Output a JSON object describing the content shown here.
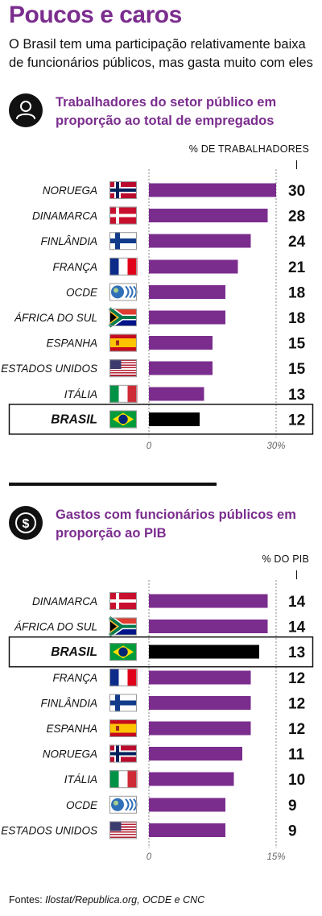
{
  "header": {
    "title": "Poucos e caros",
    "subtitle": "O Brasil tem uma participação relativamente baixa de funcionários públicos, mas gasta muito com eles"
  },
  "colors": {
    "bar": "#7b2d8e",
    "highlight_bar": "#000000",
    "title": "#7b2d8e"
  },
  "icons": {
    "section1": "person-icon",
    "section2": "dollar-coin-icon"
  },
  "source": {
    "prefix": "Fontes: ",
    "text": "Ilostat/Republica.org, OCDE e CNC"
  },
  "chart_data": [
    {
      "type": "bar",
      "orientation": "horizontal",
      "title": "Trabalhadores do setor público em proporção ao total de empregados",
      "unit_label": "% DE TRABALHADORES",
      "categories": [
        "NORUEGA",
        "DINAMARCA",
        "FINLÂNDIA",
        "FRANÇA",
        "OCDE",
        "ÁFRICA DO SUL",
        "ESPANHA",
        "ESTADOS UNIDOS",
        "ITÁLIA",
        "BRASIL"
      ],
      "values": [
        30,
        28,
        24,
        21,
        18,
        18,
        15,
        15,
        13,
        12
      ],
      "flags": [
        "norway",
        "denmark",
        "finland",
        "france",
        "oecd",
        "south-africa",
        "spain",
        "usa",
        "italy",
        "brazil"
      ],
      "highlight": "BRASIL",
      "xlim": [
        0,
        30
      ],
      "ticks": [
        "0",
        "30%"
      ],
      "grid": true
    },
    {
      "type": "bar",
      "orientation": "horizontal",
      "title": "Gastos com funcionários públicos em proporção ao PIB",
      "unit_label": "% DO PIB",
      "categories": [
        "DINAMARCA",
        "ÁFRICA DO SUL",
        "BRASIL",
        "FRANÇA",
        "FINLÂNDIA",
        "ESPANHA",
        "NORUEGA",
        "ITÁLIA",
        "OCDE",
        "ESTADOS UNIDOS"
      ],
      "values": [
        14,
        14,
        13,
        12,
        12,
        12,
        11,
        10,
        9,
        9
      ],
      "flags": [
        "denmark",
        "south-africa",
        "brazil",
        "france",
        "finland",
        "spain",
        "norway",
        "italy",
        "oecd",
        "usa"
      ],
      "highlight": "BRASIL",
      "xlim": [
        0,
        15
      ],
      "ticks": [
        "0",
        "15%"
      ],
      "grid": true
    }
  ]
}
